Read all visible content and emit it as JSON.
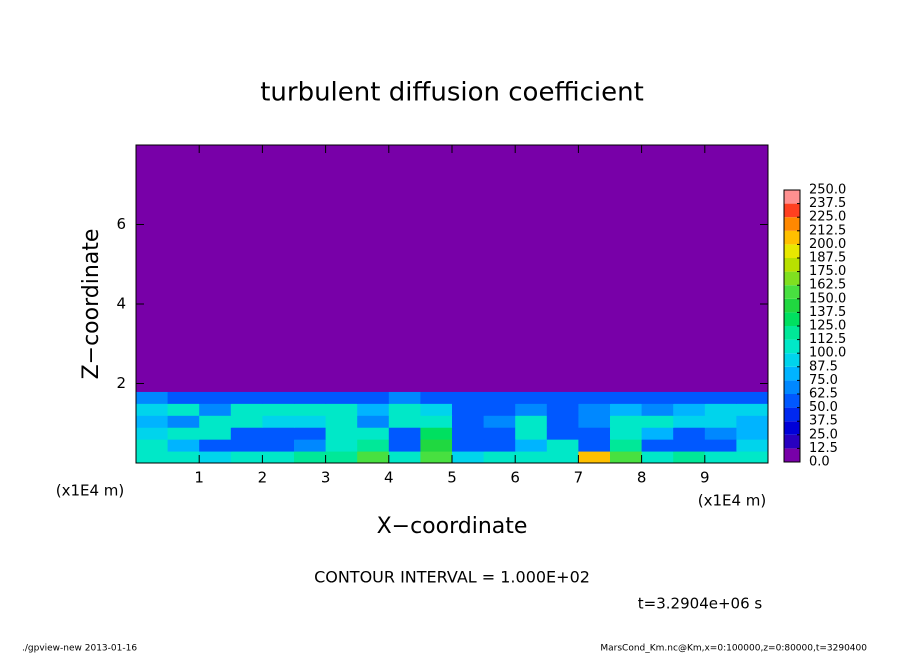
{
  "chart_data": {
    "type": "heatmap",
    "title": "turbulent diffusion coefficient",
    "x_label": "X−coordinate",
    "y_label": "Z−coordinate",
    "x_unit": "(x1E4 m)",
    "y_unit": "(x1E4 m)",
    "xlim": [
      0,
      10
    ],
    "ylim": [
      0,
      8
    ],
    "xticks": [
      1,
      2,
      3,
      4,
      5,
      6,
      7,
      8,
      9
    ],
    "yticks": [
      2,
      4,
      6
    ],
    "x_edges": [
      0,
      0.5,
      1,
      1.5,
      2,
      2.5,
      3,
      3.5,
      4,
      4.5,
      5,
      5.5,
      6,
      6.5,
      7,
      7.5,
      8,
      8.5,
      9,
      9.5,
      10
    ],
    "y_edges": [
      0,
      0.3,
      0.6,
      0.9,
      1.2,
      1.5,
      1.8,
      8
    ],
    "z": [
      [
        110,
        100,
        90,
        100,
        110,
        120,
        120,
        160,
        110,
        150,
        90,
        110,
        100,
        110,
        200,
        160,
        110,
        120,
        100,
        110
      ],
      [
        100,
        80,
        60,
        50,
        50,
        70,
        100,
        120,
        60,
        140,
        50,
        50,
        80,
        110,
        60,
        120,
        60,
        50,
        60,
        90
      ],
      [
        90,
        100,
        110,
        60,
        50,
        60,
        110,
        100,
        60,
        130,
        50,
        60,
        100,
        60,
        50,
        110,
        80,
        60,
        70,
        80
      ],
      [
        80,
        70,
        100,
        100,
        90,
        90,
        100,
        70,
        100,
        110,
        60,
        70,
        110,
        60,
        70,
        100,
        100,
        90,
        90,
        80
      ],
      [
        90,
        100,
        70,
        100,
        100,
        100,
        100,
        80,
        110,
        90,
        60,
        60,
        70,
        60,
        70,
        80,
        70,
        80,
        90,
        90
      ],
      [
        70,
        60,
        60,
        60,
        60,
        60,
        60,
        60,
        70,
        60,
        60,
        60,
        60,
        60,
        60,
        60,
        60,
        60,
        60,
        60
      ],
      [
        0,
        0,
        0,
        0,
        0,
        0,
        0,
        0,
        0,
        0,
        0,
        0,
        0,
        0,
        0,
        0,
        0,
        0,
        0,
        0
      ]
    ],
    "colorbar_ticks": [
      {
        "value": 0,
        "label": "0.0"
      },
      12.5,
      {
        "value": 25,
        "label": "25.0"
      },
      37.5,
      {
        "value": 50,
        "label": "50.0"
      },
      62.5,
      {
        "value": 75,
        "label": "75.0"
      },
      87.5,
      {
        "value": 100,
        "label": "100.0"
      },
      112.5,
      {
        "value": 125,
        "label": "125.0"
      },
      137.5,
      {
        "value": 150,
        "label": "150.0"
      },
      162.5,
      {
        "value": 175,
        "label": "175.0"
      },
      187.5,
      {
        "value": 200,
        "label": "200.0"
      },
      212.5,
      {
        "value": 225,
        "label": "225.0"
      },
      237.5,
      {
        "value": 250,
        "label": "250.0"
      }
    ],
    "colors": [
      "#7800a8",
      "#2800c0",
      "#0000d8",
      "#0028f0",
      "#0058ff",
      "#0088ff",
      "#00b4ff",
      "#00d4ec",
      "#00e8c8",
      "#00e898",
      "#00e060",
      "#20d840",
      "#48e040",
      "#80e020",
      "#b8e000",
      "#e8e800",
      "#ffc000",
      "#ff8800",
      "#ff4020",
      "#ff9090"
    ],
    "annotation": "CONTOUR INTERVAL = 1.000E+02",
    "time_label": "t=3.2904e+06 s",
    "footer_left": "./gpview-new  2013-01-16",
    "footer_right": "MarsCond_Km.nc@Km,x=0:100000,z=0:80000,t=3290400"
  }
}
